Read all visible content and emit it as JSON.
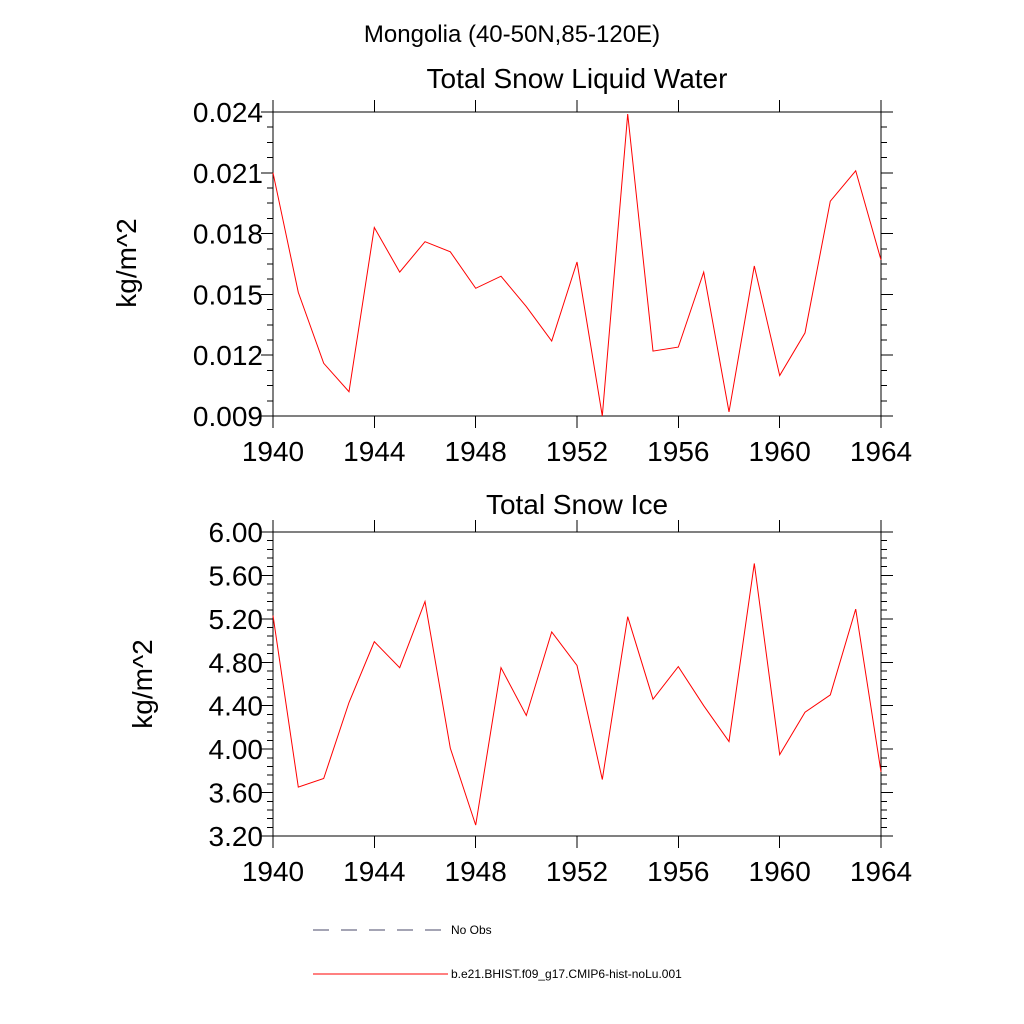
{
  "suptitle": "Mongolia (40-50N,85-120E)",
  "chart_data": [
    {
      "type": "line",
      "title": "Total Snow Liquid Water",
      "xlabel": "",
      "ylabel": "kg/m^2",
      "xlim": [
        1940,
        1964
      ],
      "ylim": [
        0.009,
        0.024
      ],
      "xticks": [
        "1940",
        "1944",
        "1948",
        "1952",
        "1956",
        "1960",
        "1964"
      ],
      "yticks": [
        "0.024",
        "0.021",
        "0.018",
        "0.015",
        "0.012",
        "0.009"
      ],
      "grid": false,
      "series": [
        {
          "name": "b.e21.BHIST.f09_g17.CMIP6-hist-noLu.001",
          "color": "#ff0000",
          "x": [
            1940,
            1941,
            1942,
            1943,
            1944,
            1945,
            1946,
            1947,
            1948,
            1949,
            1950,
            1951,
            1952,
            1953,
            1954,
            1955,
            1956,
            1957,
            1958,
            1959,
            1960,
            1961,
            1962,
            1963,
            1964
          ],
          "y": [
            0.021,
            0.0151,
            0.0116,
            0.0102,
            0.0183,
            0.0161,
            0.0176,
            0.0171,
            0.0153,
            0.0159,
            0.0144,
            0.0127,
            0.0166,
            0.009,
            0.0239,
            0.0122,
            0.0124,
            0.0161,
            0.0092,
            0.0164,
            0.011,
            0.0131,
            0.0196,
            0.0211,
            0.0167
          ]
        }
      ]
    },
    {
      "type": "line",
      "title": "Total Snow Ice",
      "xlabel": "",
      "ylabel": "kg/m^2",
      "xlim": [
        1940,
        1964
      ],
      "ylim": [
        3.2,
        6.0
      ],
      "xticks": [
        "1940",
        "1944",
        "1948",
        "1952",
        "1956",
        "1960",
        "1964"
      ],
      "yticks": [
        "6.00",
        "5.60",
        "5.20",
        "4.80",
        "4.40",
        "4.00",
        "3.60",
        "3.20"
      ],
      "grid": false,
      "series": [
        {
          "name": "b.e21.BHIST.f09_g17.CMIP6-hist-noLu.001",
          "color": "#ff0000",
          "x": [
            1940,
            1941,
            1942,
            1943,
            1944,
            1945,
            1946,
            1947,
            1948,
            1949,
            1950,
            1951,
            1952,
            1953,
            1954,
            1955,
            1956,
            1957,
            1958,
            1959,
            1960,
            1961,
            1962,
            1963,
            1964
          ],
          "y": [
            5.23,
            3.65,
            3.73,
            4.43,
            4.99,
            4.75,
            5.36,
            4.01,
            3.3,
            4.75,
            4.31,
            5.08,
            4.77,
            3.72,
            5.22,
            4.46,
            4.76,
            4.4,
            4.07,
            5.71,
            3.95,
            4.34,
            4.5,
            5.29,
            3.79
          ]
        }
      ]
    }
  ],
  "legend": {
    "placement": "bottom",
    "items": [
      {
        "label": "No Obs",
        "color": "#4a4a6a",
        "style": "dashed"
      },
      {
        "label": "b.e21.BHIST.f09_g17.CMIP6-hist-noLu.001",
        "color": "#ff0000",
        "style": "solid"
      }
    ]
  }
}
